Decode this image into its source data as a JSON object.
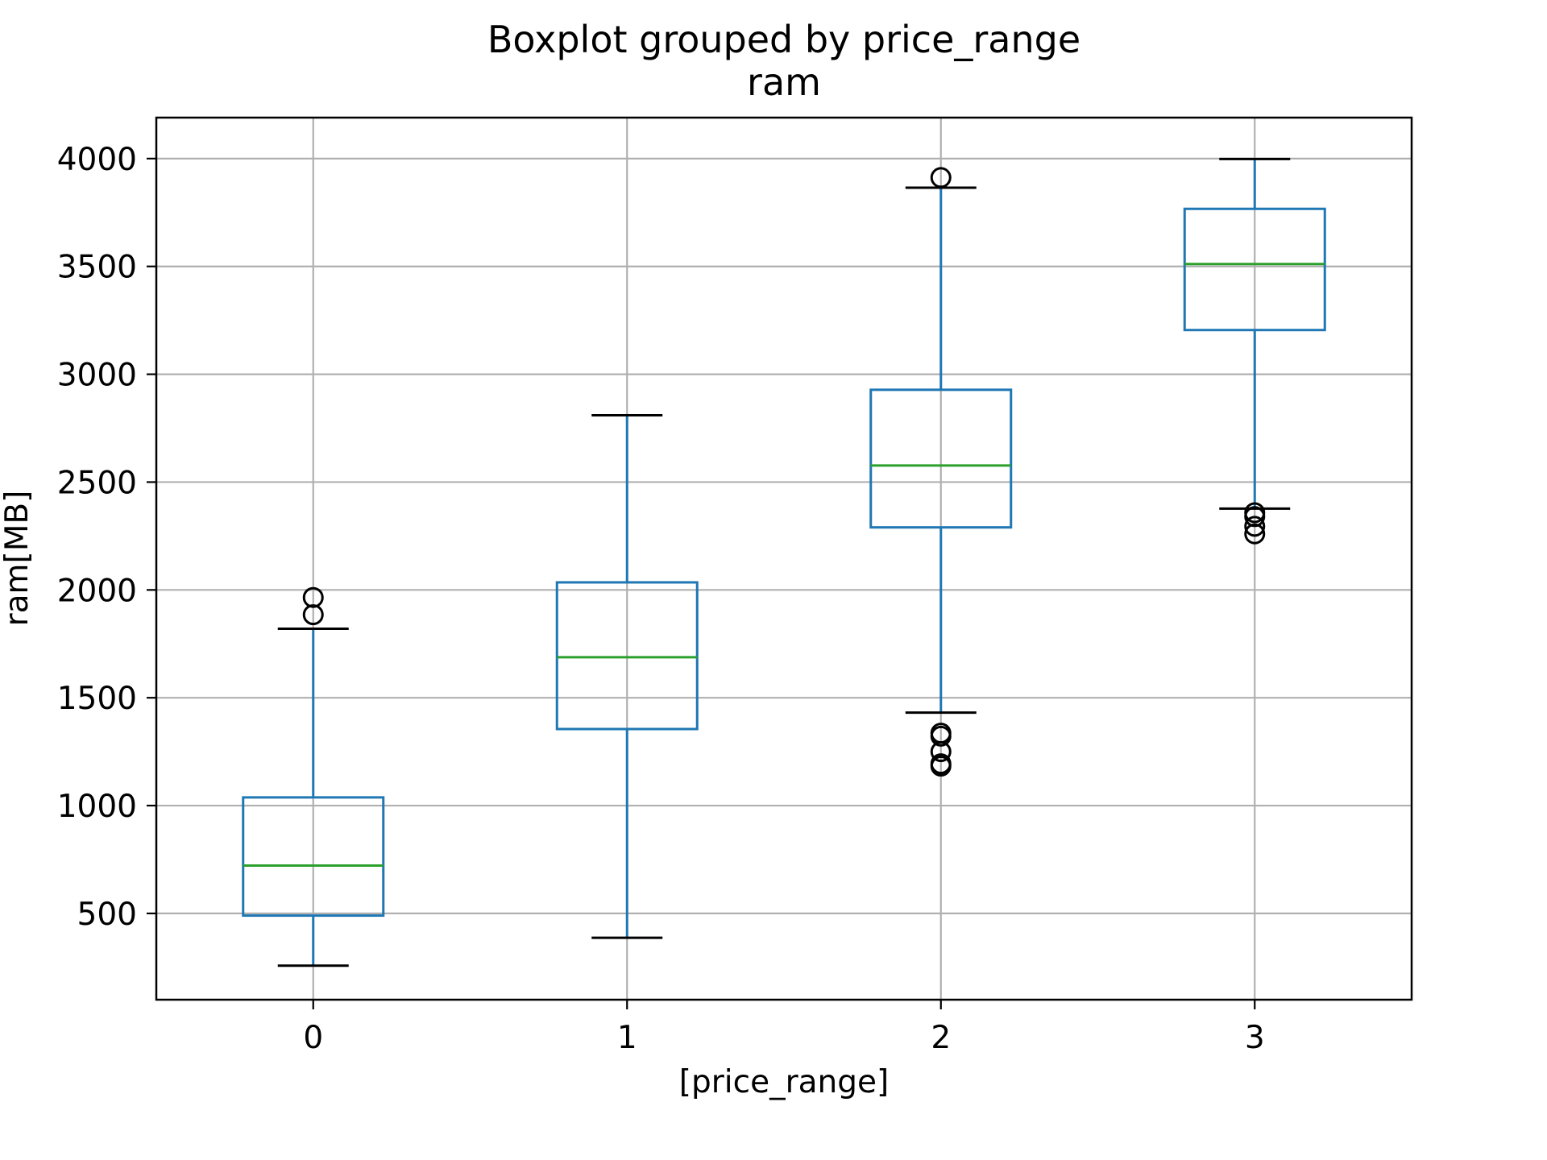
{
  "chart_data": {
    "type": "boxplot",
    "title": "Boxplot grouped by price_range",
    "subtitle": "ram",
    "xlabel": "[price_range]",
    "ylabel": "ram[MB]",
    "categories": [
      "0",
      "1",
      "2",
      "3"
    ],
    "ylim": [
      100,
      4190
    ],
    "xlim": [
      -0.5,
      3.5
    ],
    "yticks": [
      500,
      1000,
      1500,
      2000,
      2500,
      3000,
      3500,
      4000
    ],
    "grid": true,
    "boxes": [
      {
        "category": "0",
        "whisker_low": 258,
        "q1": 490,
        "median": 722,
        "q3": 1038,
        "whisker_high": 1820,
        "outliers": [
          1885,
          1965
        ]
      },
      {
        "category": "1",
        "whisker_low": 387,
        "q1": 1355,
        "median": 1688,
        "q3": 2035,
        "whisker_high": 2810,
        "outliers": []
      },
      {
        "category": "2",
        "whisker_low": 1431,
        "q1": 2290,
        "median": 2577,
        "q3": 2928,
        "whisker_high": 3865,
        "outliers": [
          1183,
          1194,
          1250,
          1322,
          1336,
          3912
        ]
      },
      {
        "category": "3",
        "whisker_low": 2377,
        "q1": 3205,
        "median": 3511,
        "q3": 3767,
        "whisker_high": 3998,
        "outliers": [
          2260,
          2295,
          2340,
          2358
        ]
      }
    ],
    "colors": {
      "box": "#1f77b4",
      "median": "#2ca02c",
      "whisker_cap": "#000000",
      "grid": "#b0b0b0",
      "outlier": "#000000"
    }
  }
}
